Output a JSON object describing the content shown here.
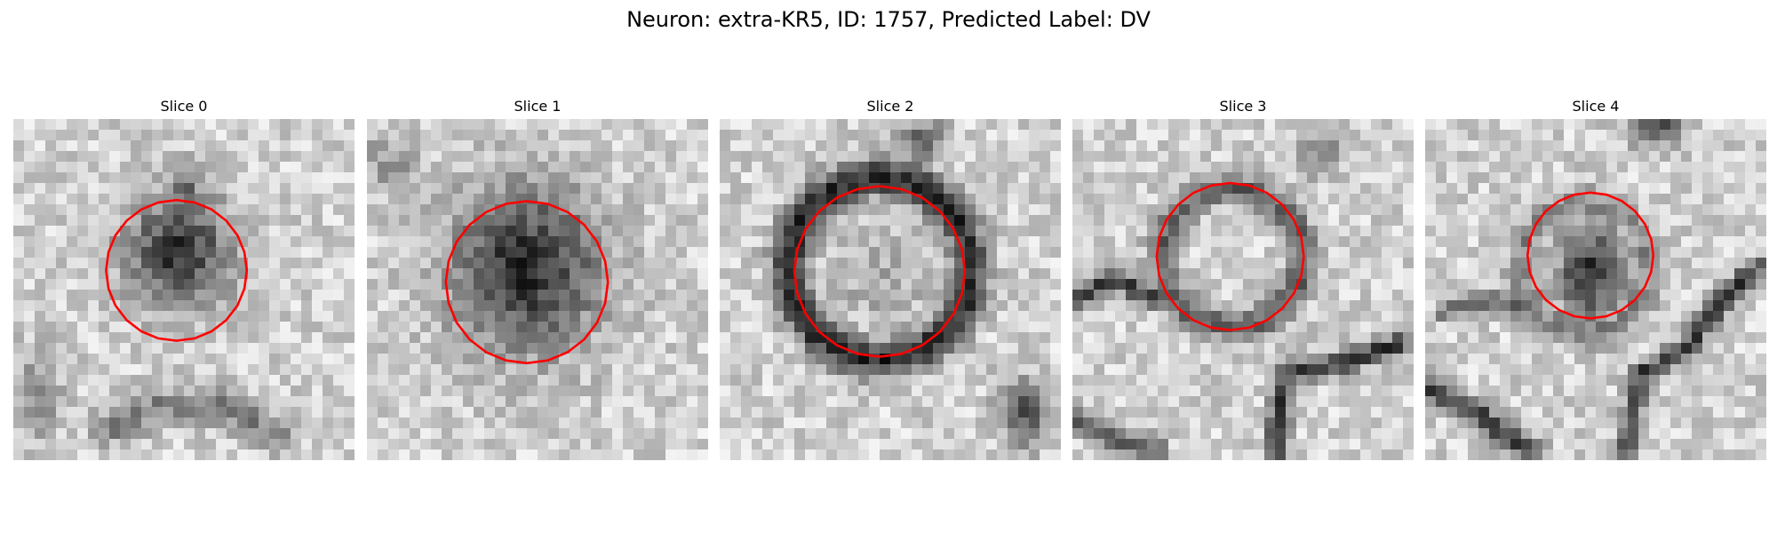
{
  "figure": {
    "title": "Neuron: extra-KR5, ID: 1757, Predicted Label: DV",
    "contour_color": "#ff0000"
  },
  "slices": [
    {
      "title": "Slice 0"
    },
    {
      "title": "Slice 1"
    },
    {
      "title": "Slice 2"
    },
    {
      "title": "Slice 3"
    },
    {
      "title": "Slice 4"
    }
  ]
}
